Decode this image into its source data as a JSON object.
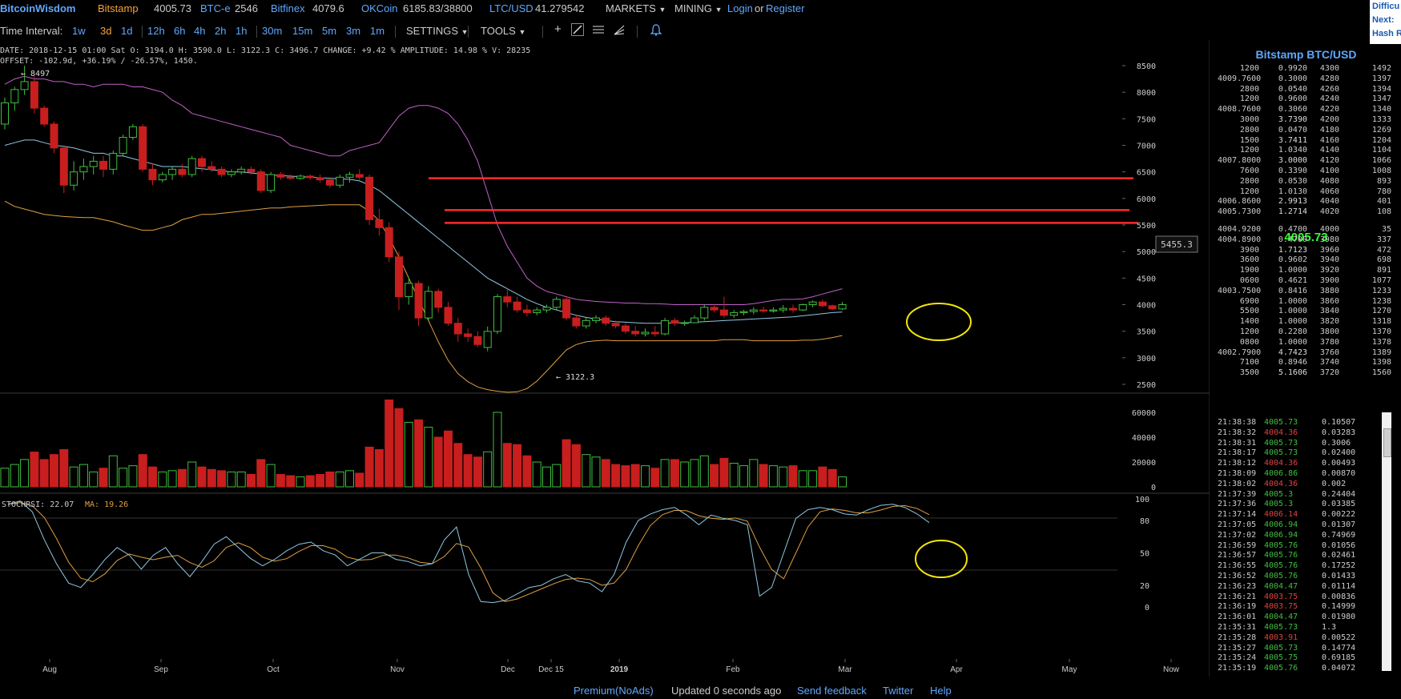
{
  "header": {
    "logo": "BitcoinWisdom",
    "tickers": [
      {
        "name": "Bitstamp",
        "value": "4005.73",
        "style": "bw"
      },
      {
        "name": "BTC-e",
        "value": "2546",
        "style": "ex"
      },
      {
        "name": "Bitfinex",
        "value": "4079.6",
        "style": "ex"
      },
      {
        "name": "OKCoin",
        "value": "6185.83/38800",
        "style": "ex"
      },
      {
        "name": "LTC/USD",
        "value": "41.279542",
        "style": "ex"
      }
    ],
    "markets": "MARKETS",
    "mining": "MINING",
    "login": "Login",
    "or": "or",
    "register": "Register",
    "right_box": [
      "Difficu",
      "Next:",
      "Hash R"
    ]
  },
  "toolbar": {
    "label": "Time Interval:",
    "intervals": [
      "1w",
      "3d",
      "1d",
      "12h",
      "6h",
      "4h",
      "2h",
      "1h",
      "30m",
      "15m",
      "5m",
      "3m",
      "1m"
    ],
    "active_interval": "3d",
    "settings": "SETTINGS",
    "tools": "TOOLS"
  },
  "info": {
    "line1": "DATE: 2018-12-15 01:00 Sat   O: 3194.0    H: 3590.0    L: 3122.3    C: 3496.7    CHANGE: +9.42 %    AMPLITUDE: 14.98 %    V: 28235",
    "line2": "OFFSET: -102.9d, +36.19% / -26.57%, 1450."
  },
  "chart_data": {
    "type": "candlestick",
    "price_axis": {
      "min": 2500,
      "max": 8500,
      "ticks": [
        2500,
        3000,
        3500,
        4000,
        4500,
        5000,
        5500,
        6000,
        6500,
        7000,
        7500,
        8000,
        8500
      ]
    },
    "volume_axis": {
      "min": 0,
      "max": 60000,
      "ticks": [
        0,
        20000,
        40000,
        60000
      ]
    },
    "stoch_axis": {
      "ticks": [
        0,
        20,
        50,
        80,
        100
      ]
    },
    "x_labels": [
      "Aug",
      "Sep",
      "Oct",
      "Nov",
      "Dec",
      "Dec 15",
      "2019",
      "Feb",
      "Mar",
      "Apr",
      "May",
      "Now"
    ],
    "high_label": "8497",
    "low_label": "3122.3",
    "price_tag": "5455.3",
    "horizontal_lines": [
      6380,
      5780,
      5540
    ],
    "candles": [
      [
        7400,
        7900,
        7300,
        7800,
        15000
      ],
      [
        7800,
        8100,
        7650,
        8050,
        18000
      ],
      [
        8050,
        8497,
        7950,
        8200,
        22000
      ],
      [
        8200,
        8300,
        7600,
        7700,
        28000
      ],
      [
        7700,
        7750,
        7350,
        7400,
        22000
      ],
      [
        7400,
        7450,
        6850,
        6950,
        26000
      ],
      [
        6950,
        7000,
        6100,
        6250,
        30000
      ],
      [
        6250,
        6700,
        6150,
        6500,
        16000
      ],
      [
        6500,
        6750,
        6350,
        6600,
        18000
      ],
      [
        6600,
        6800,
        6450,
        6700,
        12000
      ],
      [
        6700,
        6800,
        6400,
        6550,
        15000
      ],
      [
        6550,
        6900,
        6450,
        6850,
        25000
      ],
      [
        6850,
        7200,
        6800,
        7150,
        15000
      ],
      [
        7150,
        7400,
        7100,
        7350,
        17000
      ],
      [
        7350,
        7400,
        6500,
        6550,
        26000
      ],
      [
        6550,
        6650,
        6250,
        6350,
        16000
      ],
      [
        6350,
        6500,
        6300,
        6450,
        12000
      ],
      [
        6450,
        6600,
        6350,
        6550,
        13000
      ],
      [
        6550,
        6650,
        6400,
        6450,
        14000
      ],
      [
        6450,
        6800,
        6400,
        6750,
        20000
      ],
      [
        6750,
        6800,
        6500,
        6600,
        16000
      ],
      [
        6600,
        6700,
        6500,
        6550,
        14000
      ],
      [
        6550,
        6600,
        6400,
        6450,
        13000
      ],
      [
        6450,
        6550,
        6400,
        6500,
        12000
      ],
      [
        6500,
        6600,
        6450,
        6550,
        12000
      ],
      [
        6550,
        6600,
        6450,
        6500,
        10000
      ],
      [
        6500,
        6550,
        6100,
        6150,
        22000
      ],
      [
        6150,
        6500,
        6100,
        6450,
        18000
      ],
      [
        6450,
        6500,
        6350,
        6400,
        10000
      ],
      [
        6400,
        6450,
        6350,
        6380,
        9000
      ],
      [
        6380,
        6450,
        6350,
        6420,
        8000
      ],
      [
        6420,
        6450,
        6350,
        6390,
        9000
      ],
      [
        6390,
        6450,
        6300,
        6350,
        10000
      ],
      [
        6350,
        6400,
        6200,
        6250,
        12000
      ],
      [
        6250,
        6450,
        6200,
        6400,
        12000
      ],
      [
        6400,
        6500,
        6300,
        6450,
        13000
      ],
      [
        6450,
        6550,
        6350,
        6400,
        11000
      ],
      [
        6400,
        6450,
        5500,
        5600,
        32000
      ],
      [
        5600,
        5800,
        5300,
        5450,
        30000
      ],
      [
        5450,
        5550,
        4800,
        4900,
        70000
      ],
      [
        4900,
        5000,
        3900,
        4150,
        63000
      ],
      [
        4150,
        4500,
        4000,
        4400,
        52000
      ],
      [
        4400,
        4450,
        3600,
        3750,
        54000
      ],
      [
        3750,
        4350,
        3700,
        4250,
        48000
      ],
      [
        4250,
        4300,
        3850,
        3950,
        40000
      ],
      [
        3950,
        4050,
        3600,
        3650,
        45000
      ],
      [
        3650,
        3750,
        3300,
        3450,
        35000
      ],
      [
        3450,
        3550,
        3300,
        3400,
        26000
      ],
      [
        3400,
        3500,
        3200,
        3250,
        24000
      ],
      [
        3194,
        3590,
        3122,
        3497,
        28235
      ],
      [
        3497,
        4200,
        3450,
        4150,
        60000
      ],
      [
        4150,
        4300,
        3950,
        4050,
        35000
      ],
      [
        4050,
        4150,
        3850,
        3900,
        34000
      ],
      [
        3900,
        4000,
        3780,
        3850,
        25000
      ],
      [
        3850,
        3950,
        3800,
        3900,
        20000
      ],
      [
        3900,
        4000,
        3850,
        3950,
        16000
      ],
      [
        3950,
        4150,
        3900,
        4100,
        18000
      ],
      [
        4100,
        4150,
        3700,
        3750,
        38000
      ],
      [
        3750,
        3800,
        3550,
        3600,
        34000
      ],
      [
        3600,
        3750,
        3550,
        3700,
        26000
      ],
      [
        3700,
        3800,
        3650,
        3750,
        24000
      ],
      [
        3750,
        3800,
        3600,
        3650,
        22000
      ],
      [
        3650,
        3700,
        3550,
        3600,
        18000
      ],
      [
        3600,
        3650,
        3450,
        3500,
        17000
      ],
      [
        3500,
        3600,
        3400,
        3450,
        18000
      ],
      [
        3450,
        3550,
        3400,
        3480,
        17000
      ],
      [
        3480,
        3600,
        3400,
        3450,
        15000
      ],
      [
        3450,
        3750,
        3420,
        3700,
        22000
      ],
      [
        3700,
        3750,
        3600,
        3650,
        22000
      ],
      [
        3650,
        3700,
        3600,
        3660,
        20000
      ],
      [
        3660,
        3800,
        3650,
        3750,
        22000
      ],
      [
        3750,
        4000,
        3700,
        3950,
        25000
      ],
      [
        3950,
        4000,
        3850,
        3900,
        18000
      ],
      [
        3900,
        4150,
        3750,
        3800,
        23000
      ],
      [
        3800,
        3900,
        3750,
        3850,
        19000
      ],
      [
        3850,
        3900,
        3800,
        3870,
        17000
      ],
      [
        3870,
        3950,
        3820,
        3900,
        22000
      ],
      [
        3900,
        3960,
        3850,
        3880,
        18000
      ],
      [
        3880,
        3950,
        3850,
        3900,
        17000
      ],
      [
        3900,
        3990,
        3850,
        3930,
        16000
      ],
      [
        3930,
        4000,
        3850,
        3900,
        17000
      ],
      [
        3900,
        4020,
        3880,
        4000,
        13000
      ],
      [
        4000,
        4080,
        3950,
        4050,
        13000
      ],
      [
        4050,
        4100,
        3950,
        3980,
        16000
      ],
      [
        3980,
        4000,
        3900,
        3920,
        14000
      ],
      [
        3920,
        4050,
        3900,
        4000,
        8000
      ]
    ],
    "bb_upper": [
      8150,
      8250,
      8300,
      8250,
      8250,
      8200,
      8200,
      8150,
      8150,
      8100,
      8150,
      8150,
      8150,
      8100,
      8100,
      8050,
      8000,
      7850,
      7750,
      7600,
      7550,
      7500,
      7450,
      7400,
      7350,
      7300,
      7250,
      7200,
      7150,
      7000,
      6950,
      6900,
      6850,
      6800,
      6800,
      6900,
      6950,
      7000,
      7050,
      7300,
      7550,
      7700,
      7750,
      7750,
      7700,
      7600,
      7400,
      7100,
      6700,
      6100,
      5500,
      5100,
      4800,
      4500,
      4350,
      4250,
      4200,
      4150,
      4100,
      4080,
      4060,
      4050,
      4040,
      4030,
      4030,
      4020,
      4020,
      4010,
      4000,
      4000,
      4000,
      4000,
      4000,
      4000,
      4000,
      4000,
      4020,
      4050,
      4080,
      4100,
      4100,
      4110,
      4150,
      4200,
      4250,
      4300
    ],
    "bb_middle": [
      7000,
      7050,
      7100,
      7100,
      7050,
      7000,
      6980,
      6950,
      6900,
      6850,
      6850,
      6800,
      6800,
      6750,
      6700,
      6650,
      6600,
      6600,
      6600,
      6580,
      6560,
      6540,
      6520,
      6500,
      6500,
      6480,
      6460,
      6440,
      6430,
      6420,
      6410,
      6400,
      6390,
      6380,
      6370,
      6360,
      6330,
      6250,
      6150,
      6000,
      5850,
      5700,
      5550,
      5400,
      5250,
      5100,
      4950,
      4800,
      4650,
      4500,
      4400,
      4300,
      4200,
      4100,
      4020,
      3950,
      3900,
      3850,
      3800,
      3760,
      3730,
      3700,
      3680,
      3670,
      3660,
      3650,
      3650,
      3650,
      3660,
      3660,
      3670,
      3680,
      3690,
      3700,
      3710,
      3720,
      3730,
      3740,
      3750,
      3760,
      3770,
      3790,
      3810,
      3830,
      3850,
      3860
    ],
    "bb_lower": [
      5950,
      5850,
      5800,
      5750,
      5700,
      5680,
      5660,
      5650,
      5640,
      5640,
      5600,
      5560,
      5500,
      5450,
      5400,
      5400,
      5450,
      5500,
      5600,
      5650,
      5700,
      5700,
      5720,
      5740,
      5760,
      5780,
      5800,
      5820,
      5820,
      5840,
      5850,
      5860,
      5870,
      5880,
      5880,
      5880,
      5880,
      5760,
      5580,
      5260,
      4900,
      4500,
      4100,
      3700,
      3300,
      2950,
      2700,
      2550,
      2450,
      2400,
      2370,
      2350,
      2360,
      2420,
      2560,
      2750,
      2950,
      3150,
      3250,
      3300,
      3320,
      3330,
      3320,
      3320,
      3320,
      3320,
      3320,
      3320,
      3320,
      3320,
      3320,
      3320,
      3320,
      3340,
      3340,
      3340,
      3320,
      3320,
      3320,
      3320,
      3320,
      3330,
      3330,
      3350,
      3380,
      3420
    ],
    "stochrsi_label": "STOCHRSI: 22.07",
    "ma_label": "MA: 19.26",
    "stochrsi": [
      95,
      98,
      88,
      62,
      40,
      22,
      18,
      30,
      44,
      55,
      48,
      35,
      48,
      55,
      40,
      28,
      42,
      58,
      65,
      55,
      45,
      38,
      44,
      52,
      58,
      60,
      52,
      48,
      38,
      44,
      50,
      50,
      44,
      42,
      38,
      40,
      62,
      74,
      30,
      5,
      4,
      6,
      12,
      18,
      20,
      26,
      30,
      24,
      22,
      14,
      30,
      60,
      80,
      86,
      90,
      92,
      85,
      76,
      85,
      82,
      80,
      76,
      10,
      18,
      50,
      82,
      90,
      92,
      90,
      86,
      85,
      90,
      94,
      95,
      92,
      86,
      78
    ]
  },
  "orderbook": {
    "title": "Bitstamp BTC/USD",
    "asks": [
      [
        "1200",
        "0.9920",
        "4300",
        "1492"
      ],
      [
        "4009.7600",
        "0.3000",
        "4280",
        "1397"
      ],
      [
        "2800",
        "0.0540",
        "4260",
        "1394"
      ],
      [
        "1200",
        "0.9600",
        "4240",
        "1347"
      ],
      [
        "4008.7600",
        "0.3060",
        "4220",
        "1340"
      ],
      [
        "3000",
        "3.7390",
        "4200",
        "1333"
      ],
      [
        "2800",
        "0.0470",
        "4180",
        "1269"
      ],
      [
        "1500",
        "3.7411",
        "4160",
        "1204"
      ],
      [
        "1200",
        "1.0340",
        "4140",
        "1104"
      ],
      [
        "4007.8000",
        "3.0000",
        "4120",
        "1066"
      ],
      [
        "7600",
        "0.3390",
        "4100",
        "1008"
      ],
      [
        "2800",
        "0.0530",
        "4080",
        "893"
      ],
      [
        "1200",
        "1.0130",
        "4060",
        "780"
      ],
      [
        "4006.8600",
        "2.9913",
        "4040",
        "401"
      ],
      [
        "4005.7300",
        "1.2714",
        "4020",
        "108"
      ]
    ],
    "last": "4005.73",
    "bids": [
      [
        "4004.9200",
        "0.4700",
        "4000",
        "35"
      ],
      [
        "4004.8900",
        "0.4700",
        "3980",
        "337"
      ],
      [
        "3900",
        "1.7123",
        "3960",
        "472"
      ],
      [
        "3600",
        "0.9602",
        "3940",
        "698"
      ],
      [
        "1900",
        "1.0000",
        "3920",
        "891"
      ],
      [
        "0600",
        "0.4621",
        "3900",
        "1077"
      ],
      [
        "4003.7500",
        "0.8416",
        "3880",
        "1233"
      ],
      [
        "6900",
        "1.0000",
        "3860",
        "1238"
      ],
      [
        "5500",
        "1.0000",
        "3840",
        "1270"
      ],
      [
        "1400",
        "1.0000",
        "3820",
        "1318"
      ],
      [
        "1200",
        "0.2280",
        "3800",
        "1370"
      ],
      [
        "0800",
        "1.0000",
        "3780",
        "1378"
      ],
      [
        "4002.7900",
        "4.7423",
        "3760",
        "1389"
      ],
      [
        "7100",
        "0.8946",
        "3740",
        "1398"
      ],
      [
        "3500",
        "5.1606",
        "3720",
        "1560"
      ]
    ]
  },
  "trades": [
    [
      "21:38:38",
      "4005.73",
      "0.10507",
      "g"
    ],
    [
      "21:38:32",
      "4004.36",
      "0.03283",
      "r"
    ],
    [
      "21:38:31",
      "4005.73",
      "0.3006",
      "g"
    ],
    [
      "21:38:17",
      "4005.73",
      "0.02400",
      "g"
    ],
    [
      "21:38:12",
      "4004.36",
      "0.00493",
      "r"
    ],
    [
      "21:38:09",
      "4006.86",
      "0.00870",
      "g"
    ],
    [
      "21:38:02",
      "4004.36",
      "0.002",
      "r"
    ],
    [
      "21:37:39",
      "4005.3",
      "0.24404",
      "g"
    ],
    [
      "21:37:36",
      "4005.3",
      "0.03385",
      "g"
    ],
    [
      "21:37:14",
      "4006.14",
      "0.00222",
      "r"
    ],
    [
      "21:37:05",
      "4006.94",
      "0.01307",
      "g"
    ],
    [
      "21:37:02",
      "4006.94",
      "0.74969",
      "g"
    ],
    [
      "21:36:59",
      "4005.76",
      "0.01056",
      "g"
    ],
    [
      "21:36:57",
      "4005.76",
      "0.02461",
      "g"
    ],
    [
      "21:36:55",
      "4005.76",
      "0.17252",
      "g"
    ],
    [
      "21:36:52",
      "4005.76",
      "0.01433",
      "g"
    ],
    [
      "21:36:23",
      "4004.47",
      "0.01114",
      "g"
    ],
    [
      "21:36:21",
      "4003.75",
      "0.00836",
      "r"
    ],
    [
      "21:36:19",
      "4003.75",
      "0.14999",
      "r"
    ],
    [
      "21:36:01",
      "4004.47",
      "0.01980",
      "g"
    ],
    [
      "21:35:31",
      "4005.73",
      "1.3",
      "g"
    ],
    [
      "21:35:28",
      "4003.91",
      "0.00522",
      "r"
    ],
    [
      "21:35:27",
      "4005.73",
      "0.14774",
      "g"
    ],
    [
      "21:35:24",
      "4005.75",
      "0.69185",
      "g"
    ],
    [
      "21:35:19",
      "4005.76",
      "0.04072",
      "g"
    ]
  ],
  "footer": {
    "premium": "Premium(NoAds)",
    "updated": "Updated 0 seconds ago",
    "feedback": "Send feedback",
    "twitter": "Twitter",
    "help": "Help"
  },
  "colors": {
    "up": "#3fbf3f",
    "down": "#c81e1e",
    "bb_upper": "#c060c8",
    "bb_middle": "#8fc8e0",
    "bb_lower": "#e0a040",
    "hline": "#ff2a2a",
    "stoch": "#8fc8e0",
    "ma": "#e0a040"
  }
}
